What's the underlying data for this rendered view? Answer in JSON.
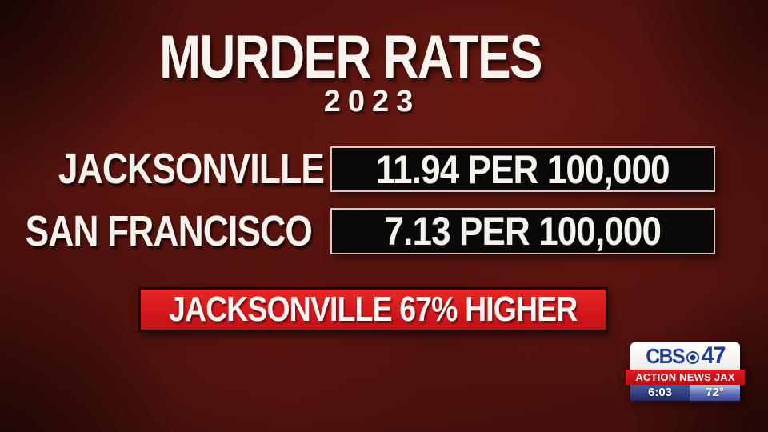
{
  "title": {
    "main": "MURDER RATES",
    "year": "2023"
  },
  "rows": [
    {
      "label": "JACKSONVILLE",
      "value": "11.94 PER 100,000"
    },
    {
      "label": "SAN FRANCISCO",
      "value": "7.13 PER 100,000"
    }
  ],
  "banner": {
    "text": "JACKSONVILLE 67% HIGHER"
  },
  "station": {
    "network": "CBS",
    "channel": "47",
    "tagline": "ACTION NEWS JAX",
    "time": "6:03",
    "temp": "72°"
  },
  "colors": {
    "background_maroon": "#4a110c",
    "banner_red": "#d4181c",
    "value_box_black": "#0b0908",
    "value_box_border": "#d6ccc3",
    "text_white": "#f5f2ee",
    "logo_blue": "#1d3b9b",
    "logo_bar_red": "#d3141a"
  },
  "chart_data": {
    "type": "table",
    "title": "MURDER RATES",
    "subtitle": "2023",
    "categories": [
      "JACKSONVILLE",
      "SAN FRANCISCO"
    ],
    "values": [
      11.94,
      7.13
    ],
    "unit": "PER 100,000",
    "annotation": "JACKSONVILLE 67% HIGHER",
    "comparison_pct_higher": 67
  }
}
